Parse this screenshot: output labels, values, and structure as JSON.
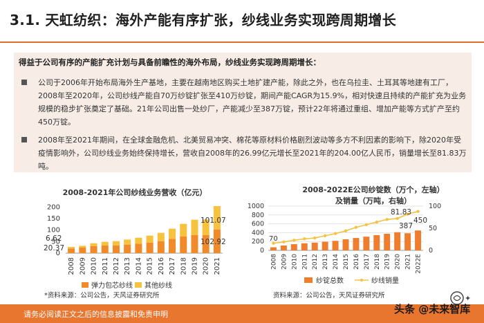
{
  "header": {
    "title": "3.1. 天虹纺织：海外产能有序扩张，纱线业务实现跨周期增长"
  },
  "summary": {
    "lead": "得益于公司有序的产能扩充计划与具备前瞻性的海外布局，纱线业务实现跨周期增长：",
    "bullet1": "公司于2006年开始布局海外生产基地，主要在越南地区购买土地扩建产能，除此之外，也在乌拉圭、土耳其等地建有工厂，2008年至2020年，公司纱线产能自70万纱锭扩张至410万纱锭，期间产能CAGR为15.9%，相对快速且持续的产能扩充为业务规模的稳步扩张奠定了基础。21年公司出售一处纱厂，产能减少至387万锭，预计22年将通过重组、增加产能等方式扩产至约450万锭。",
    "bullet2": "2008年至2021年期间，在全球金融危机、北美贸易冲突、棉花等原材料价格剧烈波动等多方不利因素的影响下，除2020年受疫情影响外，公司纱线业务始终保持增长，营收自2008年的26.99亿元增长至2021年的204.00亿人民币，销量增长至81.83万吨。"
  },
  "chart_data": [
    {
      "type": "bar",
      "title": "2008-2021年公司纱线业务营收（亿元）",
      "categories": [
        "2008",
        "2009",
        "2010",
        "2011",
        "2012",
        "2013",
        "2014",
        "2015",
        "2016",
        "2017",
        "2018",
        "2019",
        "2020",
        "2021"
      ],
      "series": [
        {
          "name": "弹力包芯纱线",
          "color": "#f08a2a",
          "values": [
            20.37,
            24,
            30,
            33,
            34,
            37,
            41,
            46,
            52,
            62,
            72,
            79,
            78,
            102.92
          ]
        },
        {
          "name": "其他纱线",
          "color": "#f7c23e",
          "values": [
            6.62,
            8,
            13,
            16,
            18,
            22,
            26,
            30,
            36,
            44,
            55,
            66,
            68,
            101.07
          ]
        }
      ],
      "data_labels": {
        "first_bottom": "20.37",
        "first_top": "6.62",
        "last_top": "101.07",
        "last_bottom": "102.92"
      },
      "yticks": [
        "0",
        "50",
        "100",
        "150",
        "200"
      ],
      "ylim": [
        0,
        210
      ],
      "legend": "bottom"
    },
    {
      "type": "bar",
      "title_line1": "2008-2022E公司纱锭数（万个，左轴）",
      "title_line2": "及销量（万吨，右轴）",
      "categories": [
        "2008",
        "2009",
        "2010",
        "2011",
        "2012",
        "2013",
        "2014",
        "2015",
        "2016",
        "2017",
        "2018",
        "2019",
        "2020",
        "2021",
        "2022E"
      ],
      "series": [
        {
          "name": "纱锭总数",
          "color": "#ef7d2e",
          "axis": "left",
          "values": [
            70,
            110,
            140,
            160,
            175,
            195,
            215,
            250,
            280,
            310,
            345,
            375,
            410,
            387,
            450
          ]
        },
        {
          "name": "纱线销量",
          "color": "#f5c242",
          "axis": "right",
          "type": "line",
          "values": [
            16,
            19,
            23,
            26,
            28,
            33,
            38,
            44,
            52,
            58,
            64,
            70,
            72,
            81.83,
            88
          ]
        }
      ],
      "data_labels": {
        "first": "70",
        "sales_2021": "81.83",
        "spindle_2021": "387",
        "spindle_2022": "450"
      },
      "left_yticks": [
        "0",
        "200",
        "400",
        "600",
        "800",
        "1000"
      ],
      "right_yticks": [
        "0",
        "50",
        "100"
      ],
      "ylim_left": [
        0,
        1000
      ],
      "ylim_right": [
        0,
        100
      ],
      "legend": "bottom"
    }
  ],
  "sources": {
    "left": "*资料来源：公司公告，天风证券研究所",
    "right": "资料来源：公司公告，天风证券研究所"
  },
  "footer": {
    "disclaimer": "请务必阅读正文之后的信息披露和免责申明"
  },
  "watermark": {
    "text": "头条 @未来智库"
  }
}
